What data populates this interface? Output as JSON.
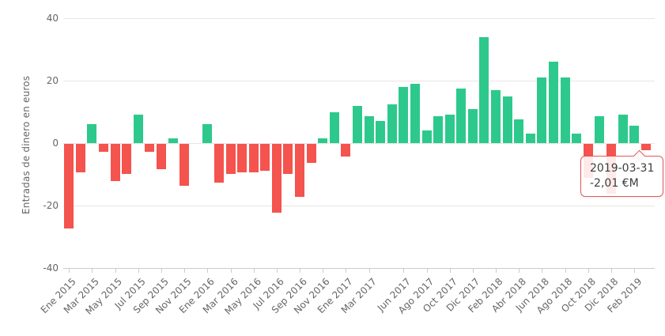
{
  "chart_data": {
    "type": "bar",
    "title": "",
    "xlabel": "",
    "ylabel": "Entradas de dinero en euros",
    "ylim": [
      -40,
      40
    ],
    "grid": true,
    "legend": false,
    "ytick_labels": [
      "40",
      "20",
      "0",
      "-20",
      "-40"
    ],
    "categories": [
      "Ene 2015",
      "Feb 2015",
      "Mar 2015",
      "Abr 2015",
      "May 2015",
      "Jun 2015",
      "Jul 2015",
      "Ago 2015",
      "Sep 2015",
      "Oct 2015",
      "Nov 2015",
      "Dic 2015",
      "Ene 2016",
      "Feb 2016",
      "Mar 2016",
      "Abr 2016",
      "May 2016",
      "Jun 2016",
      "Jul 2016",
      "Ago 2016",
      "Sep 2016",
      "Oct 2016",
      "Nov 2016",
      "Dic 2016",
      "Ene 2017",
      "Feb 2017",
      "Mar 2017",
      "Abr 2017",
      "May 2017",
      "Jun 2017",
      "Jul 2017",
      "Ago 2017",
      "Sep 2017",
      "Oct 2017",
      "Nov 2017",
      "Dic 2017",
      "Ene 2018",
      "Feb 2018",
      "Mar 2018",
      "Abr 2018",
      "May 2018",
      "Jun 2018",
      "Jul 2018",
      "Ago 2018",
      "Sep 2018",
      "Oct 2018",
      "Nov 2018",
      "Dic 2018",
      "Ene 2019",
      "Feb 2019",
      "Mar 2019"
    ],
    "values": [
      -27,
      -9,
      6,
      -2.5,
      -12,
      -9.5,
      9,
      -2.5,
      -8,
      1.5,
      -13.5,
      0,
      6,
      -12.5,
      -9.5,
      -9,
      -9,
      -8.5,
      -22,
      -9.5,
      -17,
      -6,
      1.5,
      10,
      -4,
      12,
      8.5,
      7,
      12.5,
      18,
      19,
      4,
      8.5,
      9,
      17.5,
      11,
      34,
      17,
      15,
      7.5,
      3,
      21,
      26,
      21,
      3,
      -11,
      8.5,
      -16,
      9,
      5.5,
      -2.01
    ],
    "x_ticks": [
      {
        "index": 0,
        "label": "Ene 2015"
      },
      {
        "index": 2,
        "label": "Mar 2015"
      },
      {
        "index": 4,
        "label": "May 2015"
      },
      {
        "index": 6,
        "label": "Jul 2015"
      },
      {
        "index": 8,
        "label": "Sep 2015"
      },
      {
        "index": 10,
        "label": "Nov 2015"
      },
      {
        "index": 12,
        "label": "Ene 2016"
      },
      {
        "index": 14,
        "label": "Mar 2016"
      },
      {
        "index": 16,
        "label": "May 2016"
      },
      {
        "index": 18,
        "label": "Jul 2016"
      },
      {
        "index": 20,
        "label": "Sep 2016"
      },
      {
        "index": 22,
        "label": "Nov 2016"
      },
      {
        "index": 24,
        "label": "Ene 2017"
      },
      {
        "index": 26,
        "label": "Mar 2017"
      },
      {
        "index": 29,
        "label": "Jun 2017"
      },
      {
        "index": 31,
        "label": "Ago 2017"
      },
      {
        "index": 33,
        "label": "Oct 2017"
      },
      {
        "index": 35,
        "label": "Dic 2017"
      },
      {
        "index": 37,
        "label": "Feb 2018"
      },
      {
        "index": 39,
        "label": "Abr 2018"
      },
      {
        "index": 41,
        "label": "Jun 2018"
      },
      {
        "index": 43,
        "label": "Ago 2018"
      },
      {
        "index": 45,
        "label": "Oct 2018"
      },
      {
        "index": 47,
        "label": "Dic 2018"
      },
      {
        "index": 49,
        "label": "Feb 2019"
      }
    ],
    "colors": {
      "positive": "#2dc98c",
      "negative": "#f4534e",
      "gridline": "#e6e6e6",
      "axis": "#c9ccd1",
      "label": "#666666"
    }
  },
  "tooltip": {
    "date": "2019-03-31",
    "value": "-2,01 €M",
    "target_category": "Mar 2019"
  }
}
